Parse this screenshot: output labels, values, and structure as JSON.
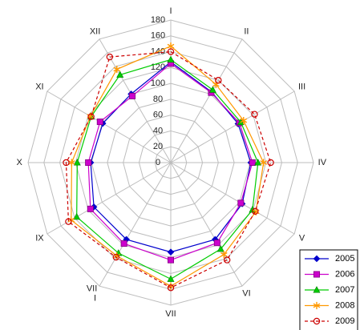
{
  "chart_data": {
    "type": "radar",
    "categories": [
      "I",
      "II",
      "III",
      "IV",
      "V",
      "VI",
      "VII",
      "VIII",
      "IX",
      "X",
      "XI",
      "XII"
    ],
    "category_label_overrides": {
      "VIII": [
        "VII",
        "I"
      ]
    },
    "rlim": [
      0,
      180
    ],
    "ticks": [
      0,
      20,
      40,
      60,
      80,
      100,
      120,
      140,
      160,
      180
    ],
    "grid": true,
    "legend_position": "bottom-right",
    "series": [
      {
        "name": "2005",
        "color": "#0000cc",
        "marker": "diamond",
        "dash": "",
        "values": [
          127,
          103,
          98,
          101,
          104,
          112,
          113,
          112,
          112,
          101,
          99,
          100
        ]
      },
      {
        "name": "2006",
        "color": "#cc00cc",
        "marker": "square",
        "dash": "",
        "values": [
          125,
          102,
          100,
          103,
          102,
          117,
          123,
          118,
          117,
          104,
          103,
          97
        ]
      },
      {
        "name": "2007",
        "color": "#00cc00",
        "marker": "triangle",
        "dash": "",
        "values": [
          130,
          106,
          102,
          110,
          119,
          126,
          147,
          132,
          137,
          118,
          116,
          128
        ]
      },
      {
        "name": "2008",
        "color": "#ff9900",
        "marker": "star",
        "dash": "",
        "values": [
          147,
          114,
          106,
          117,
          124,
          134,
          156,
          136,
          145,
          125,
          117,
          136
        ]
      },
      {
        "name": "2009",
        "color": "#cc0000",
        "marker": "circle",
        "dash": "4,3",
        "values": [
          140,
          120,
          122,
          126,
          123,
          142,
          158,
          138,
          149,
          132,
          116,
          154
        ]
      }
    ]
  }
}
